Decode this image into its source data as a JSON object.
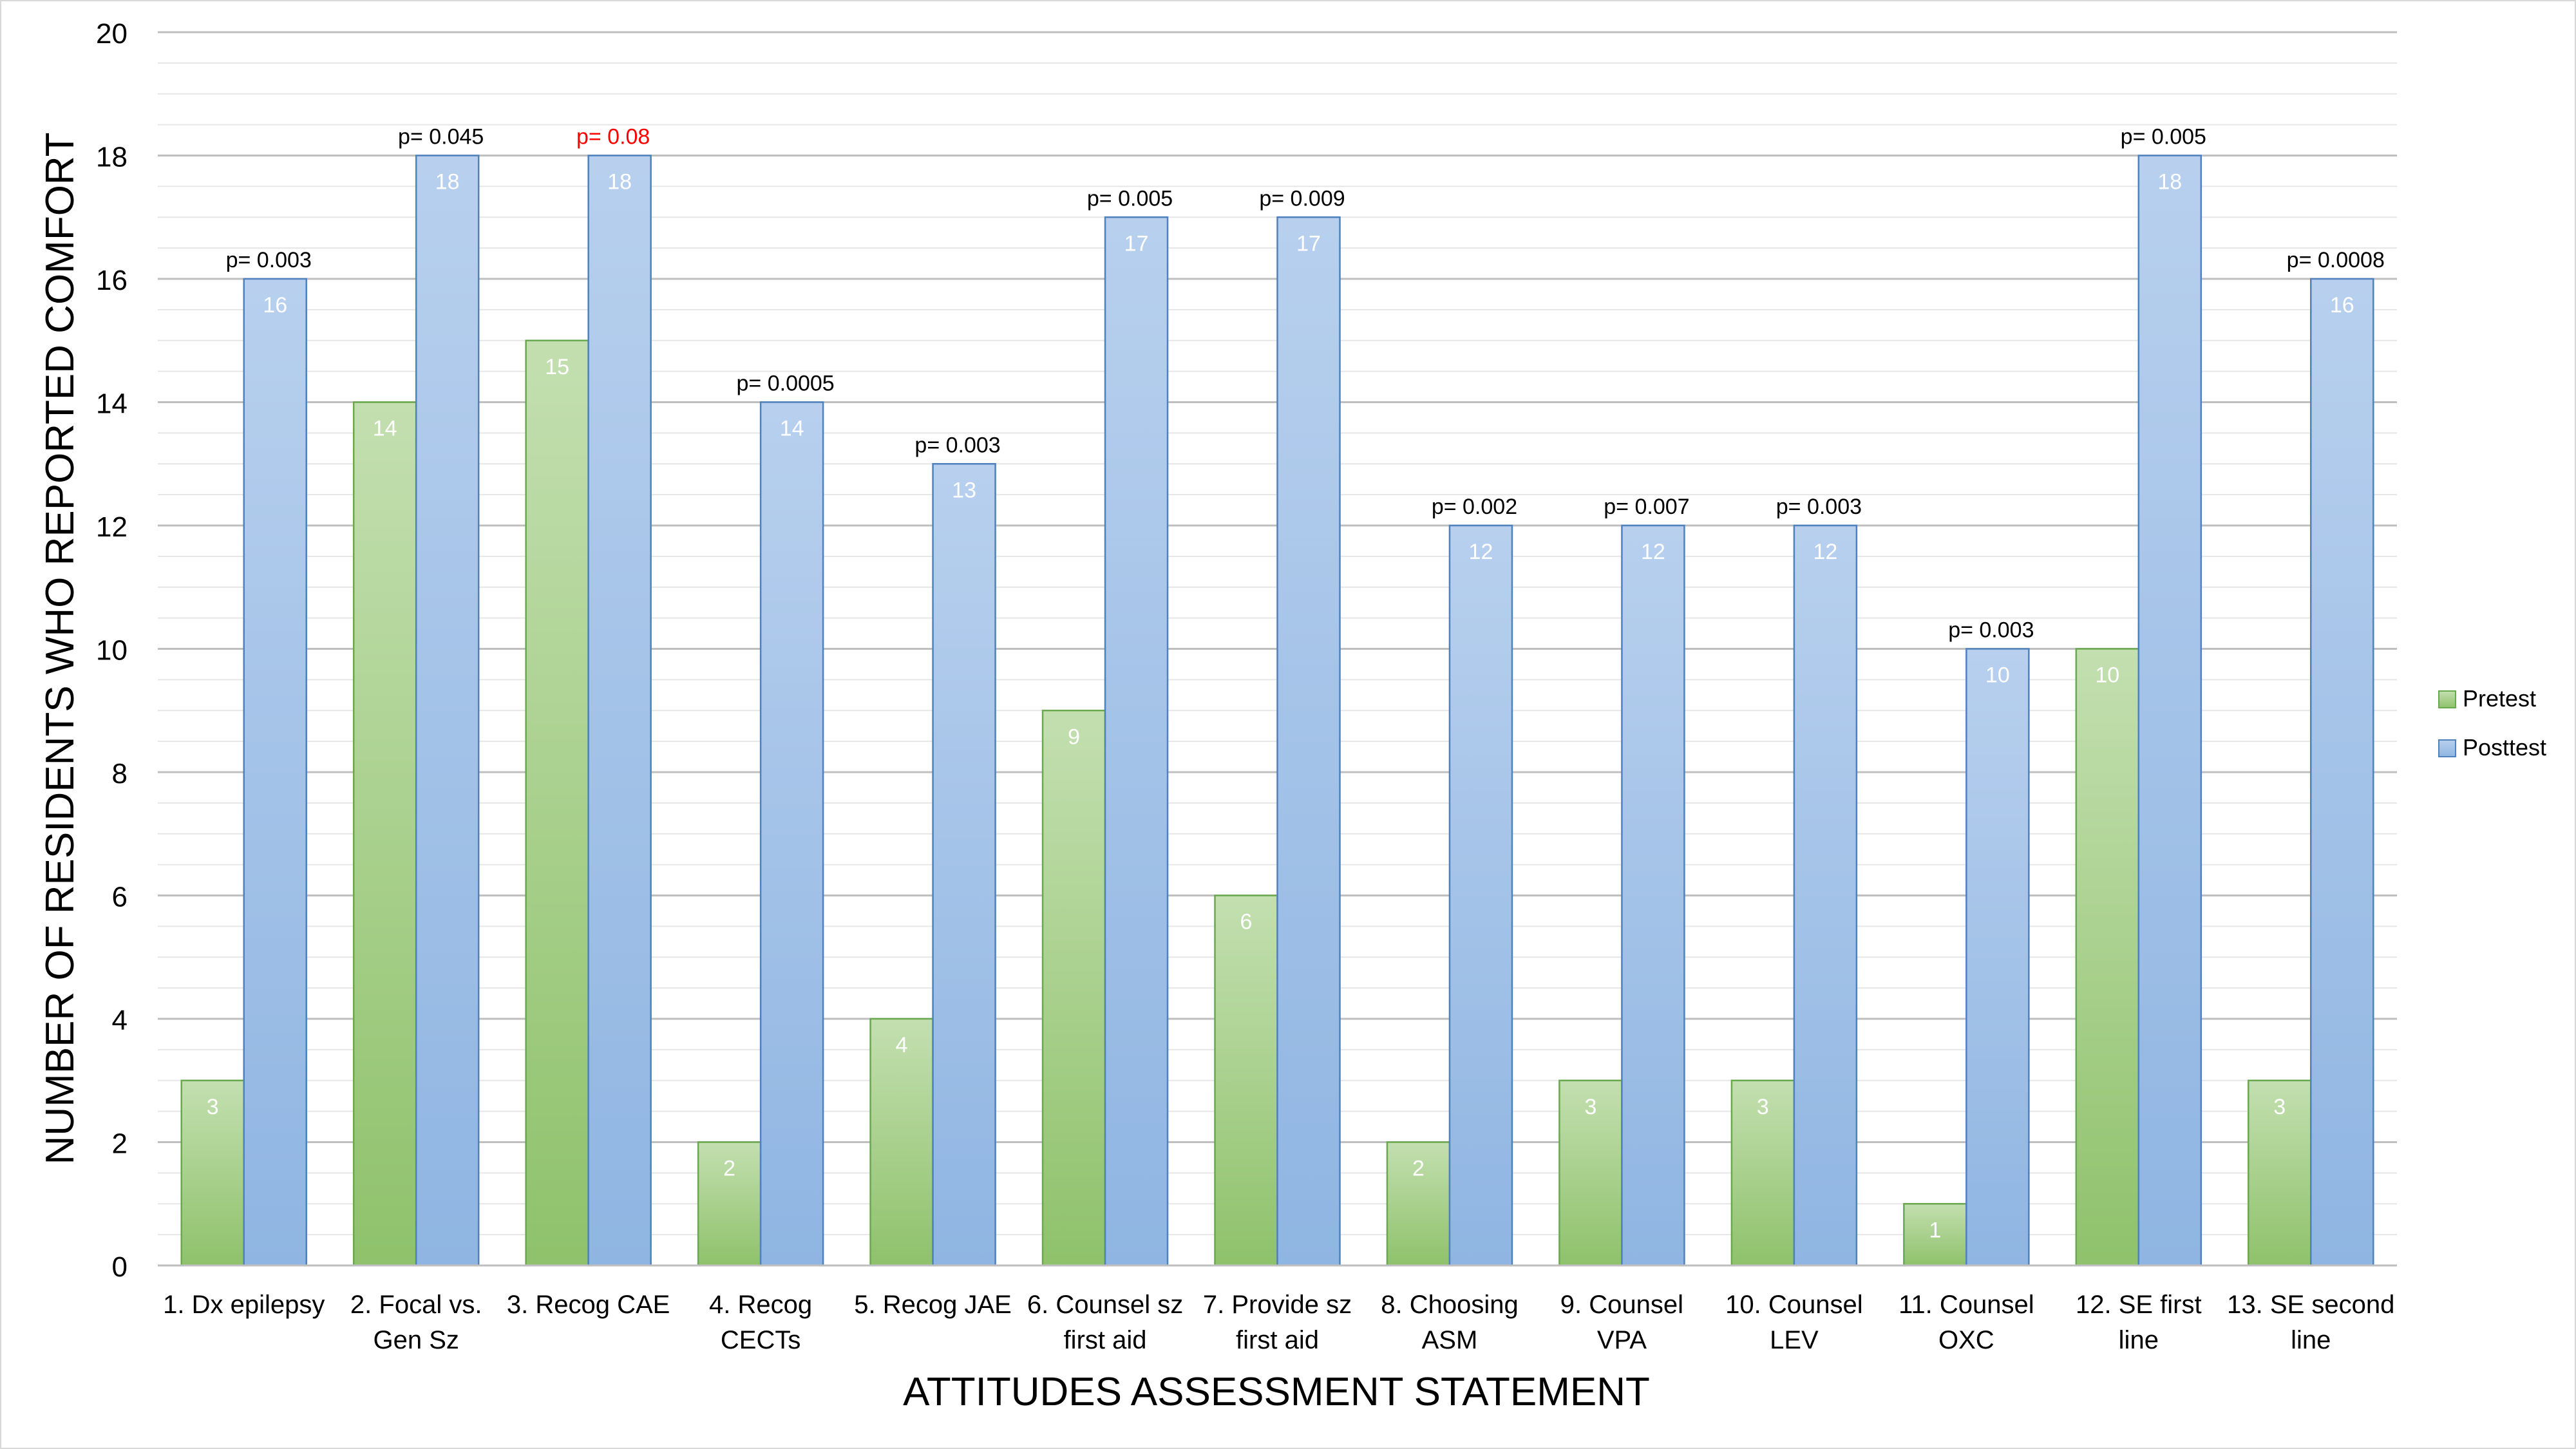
{
  "chart_data": {
    "type": "bar",
    "title": "",
    "xlabel": "ATTITUDES ASSESSMENT STATEMENT",
    "ylabel": "NUMBER OF RESIDENTS WHO REPORTED COMFORT",
    "ylim": [
      0,
      20
    ],
    "yticks": [
      "0",
      "2",
      "4",
      "6",
      "8",
      "10",
      "12",
      "14",
      "16",
      "18",
      "20"
    ],
    "grid": true,
    "legend_position": "right",
    "categories": [
      [
        "1. Dx epilepsy"
      ],
      [
        "2. Focal vs.",
        "Gen Sz"
      ],
      [
        "3. Recog CAE"
      ],
      [
        "4. Recog",
        "CECTs"
      ],
      [
        "5. Recog JAE"
      ],
      [
        "6. Counsel sz",
        "first aid"
      ],
      [
        "7. Provide sz",
        "first aid"
      ],
      [
        "8. Choosing",
        "ASM"
      ],
      [
        "9. Counsel",
        "VPA"
      ],
      [
        "10. Counsel",
        "LEV"
      ],
      [
        "11. Counsel",
        "OXC"
      ],
      [
        "12. SE first",
        "line"
      ],
      [
        "13. SE second",
        "line"
      ]
    ],
    "series": [
      {
        "name": "Pretest",
        "values": [
          3,
          14,
          15,
          2,
          4,
          9,
          6,
          2,
          3,
          3,
          1,
          10,
          3
        ],
        "color": "#8fc26b"
      },
      {
        "name": "Posttest",
        "values": [
          16,
          18,
          18,
          14,
          13,
          17,
          17,
          12,
          12,
          12,
          10,
          18,
          16
        ],
        "color": "#8fb5e2"
      }
    ],
    "annotations": [
      {
        "text": "p= 0.003",
        "color": "#000000"
      },
      {
        "text": "p= 0.045",
        "color": "#000000"
      },
      {
        "text": "p= 0.08",
        "color": "#ff0000"
      },
      {
        "text": "p= 0.0005",
        "color": "#000000"
      },
      {
        "text": "p= 0.003",
        "color": "#000000"
      },
      {
        "text": "p= 0.005",
        "color": "#000000"
      },
      {
        "text": "p= 0.009",
        "color": "#000000"
      },
      {
        "text": "p= 0.002",
        "color": "#000000"
      },
      {
        "text": "p= 0.007",
        "color": "#000000"
      },
      {
        "text": "p= 0.003",
        "color": "#000000"
      },
      {
        "text": "p= 0.003",
        "color": "#000000"
      },
      {
        "text": "p= 0.005",
        "color": "#000000"
      },
      {
        "text": "p= 0.0008",
        "color": "#000000"
      }
    ]
  }
}
